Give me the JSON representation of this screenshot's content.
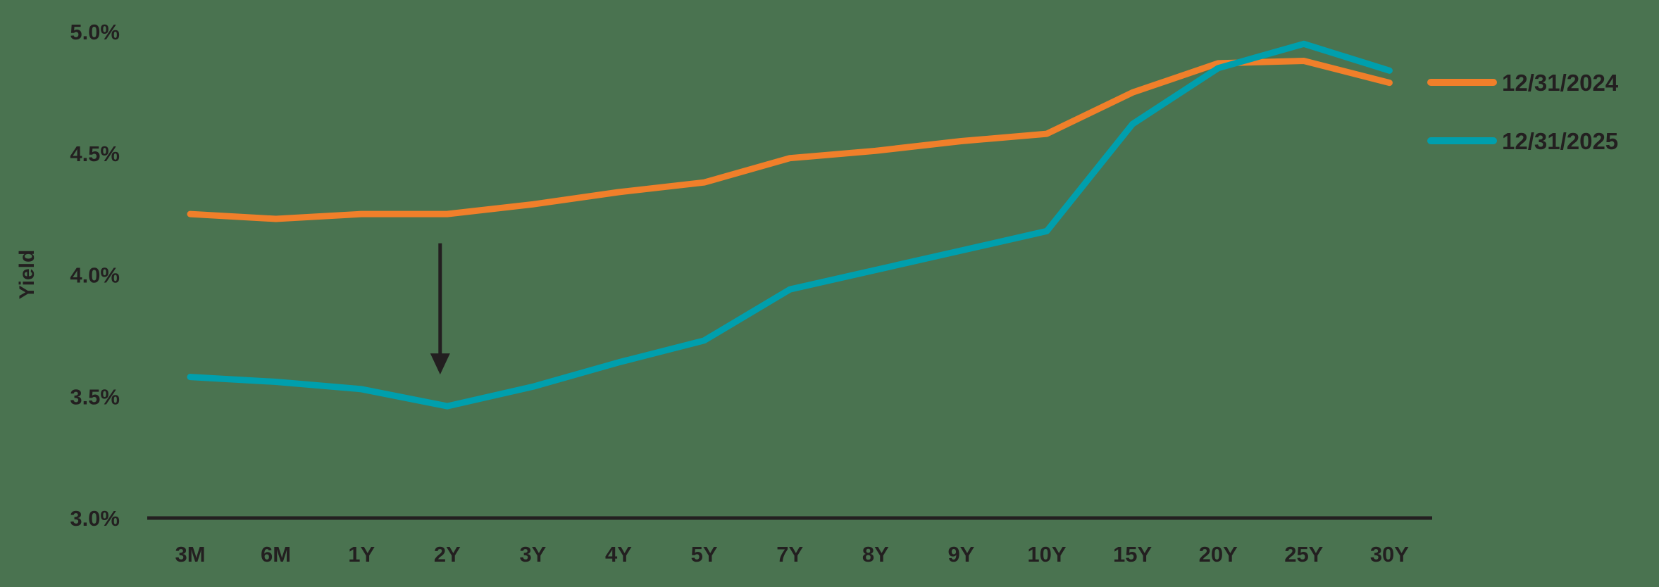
{
  "chart_data": {
    "type": "line",
    "title": "",
    "xlabel": "",
    "ylabel": "Yield",
    "ylim": [
      3.0,
      5.0
    ],
    "yticks": [
      "3.0%",
      "3.5%",
      "4.0%",
      "4.5%",
      "5.0%"
    ],
    "ytick_values": [
      3.0,
      3.5,
      4.0,
      4.5,
      5.0
    ],
    "grid": false,
    "legend_position": "right",
    "categories": [
      "3M",
      "6M",
      "1Y",
      "2Y",
      "3Y",
      "4Y",
      "5Y",
      "7Y",
      "8Y",
      "9Y",
      "10Y",
      "15Y",
      "20Y",
      "25Y",
      "30Y"
    ],
    "series": [
      {
        "name": "12/31/2024",
        "color": "#f07f2a",
        "values": [
          4.25,
          4.23,
          4.25,
          4.25,
          4.29,
          4.34,
          4.38,
          4.48,
          4.51,
          4.55,
          4.58,
          4.75,
          4.87,
          4.88,
          4.79
        ]
      },
      {
        "name": "12/31/2025",
        "color": "#009fad",
        "values": [
          3.58,
          3.56,
          3.53,
          3.46,
          3.54,
          3.64,
          3.73,
          3.94,
          4.02,
          4.1,
          4.18,
          4.62,
          4.85,
          4.95,
          4.84
        ]
      }
    ],
    "annotations": [
      {
        "type": "arrow",
        "direction": "down",
        "at_category": "2Y",
        "from_value": 4.13,
        "to_value": 3.59
      }
    ]
  },
  "colors": {
    "background": "#4a7350",
    "text": "#231f20",
    "axis": "#231f20"
  }
}
